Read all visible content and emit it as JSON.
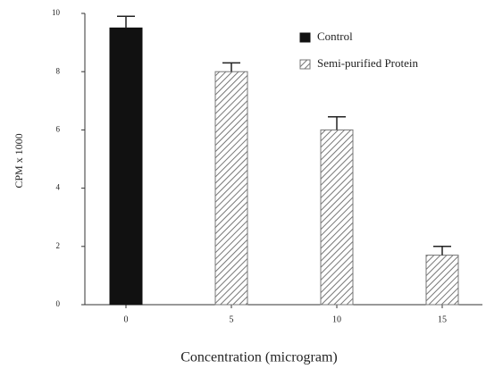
{
  "chart_data": {
    "type": "bar",
    "categories": [
      "0",
      "5",
      "10",
      "15"
    ],
    "series": [
      {
        "name": "Control",
        "color": "#111111",
        "pattern": "solid",
        "values": [
          9.5,
          null,
          null,
          null
        ],
        "errors": [
          0.4,
          null,
          null,
          null
        ]
      },
      {
        "name": "Semi-purified Protein",
        "color": "#777777",
        "pattern": "hatch",
        "values": [
          null,
          8,
          6,
          1.7
        ],
        "errors": [
          null,
          0.3,
          0.45,
          0.3
        ]
      }
    ],
    "xlabel": "Concentration (microgram)",
    "ylabel": "CPM x 1000",
    "ylim": [
      0,
      10
    ],
    "yticks": [
      0,
      2,
      4,
      6,
      8,
      10
    ],
    "grid": false,
    "legend": "upper right"
  }
}
